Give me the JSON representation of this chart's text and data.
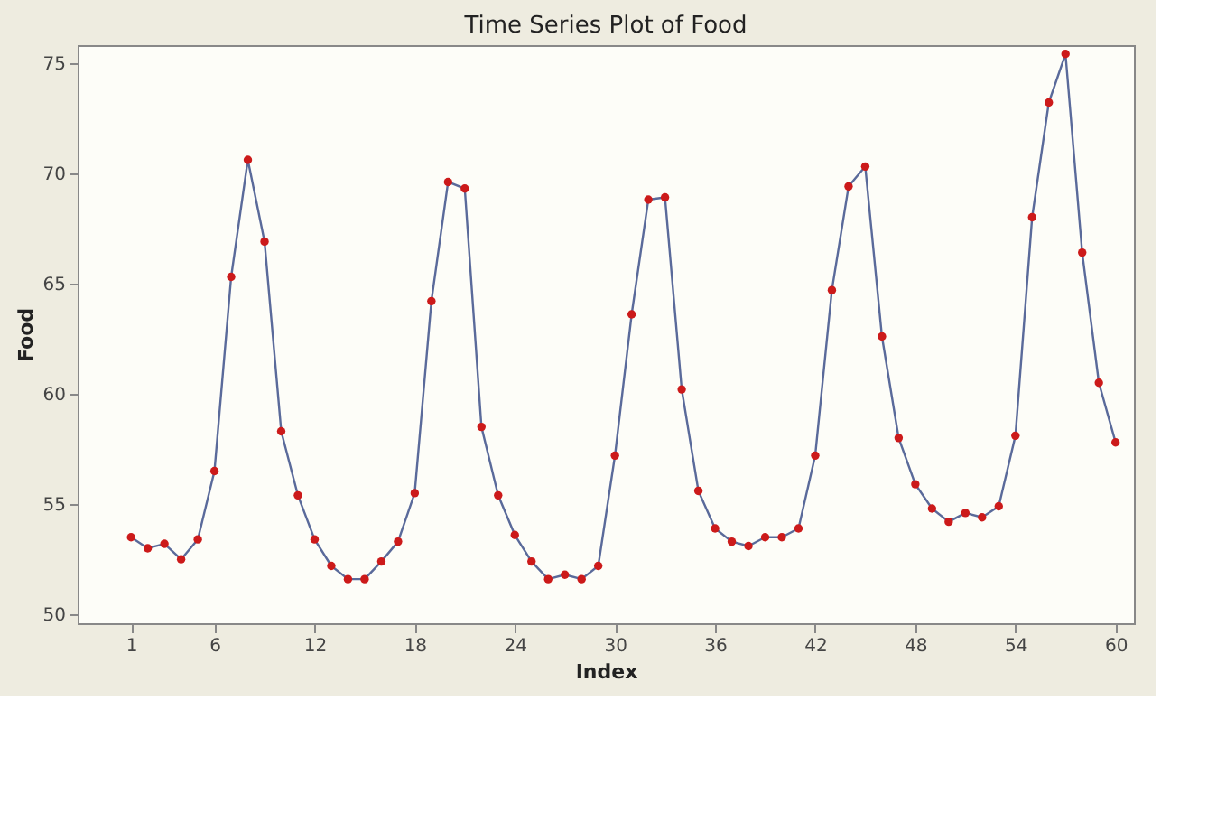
{
  "chart_data": {
    "type": "line",
    "title": "Time Series Plot of Food",
    "xlabel": "Index",
    "ylabel": "Food",
    "x": [
      1,
      2,
      3,
      4,
      5,
      6,
      7,
      8,
      9,
      10,
      11,
      12,
      13,
      14,
      15,
      16,
      17,
      18,
      19,
      20,
      21,
      22,
      23,
      24,
      25,
      26,
      27,
      28,
      29,
      30,
      31,
      32,
      33,
      34,
      35,
      36,
      37,
      38,
      39,
      40,
      41,
      42,
      43,
      44,
      45,
      46,
      47,
      48,
      49,
      50,
      51,
      52,
      53,
      54,
      55,
      56,
      57,
      58,
      59,
      60
    ],
    "series": [
      {
        "color": "#cc1a1a",
        "values": [
          53.5,
          53.0,
          53.2,
          52.5,
          53.4,
          56.5,
          65.3,
          70.6,
          66.9,
          58.3,
          55.4,
          53.4,
          52.2,
          51.6,
          51.6,
          52.4,
          53.3,
          55.5,
          64.2,
          69.6,
          69.3,
          58.5,
          55.4,
          53.6,
          52.4,
          51.6,
          51.8,
          51.6,
          52.2,
          57.2,
          63.6,
          68.8,
          68.9,
          60.2,
          55.6,
          53.9,
          53.3,
          53.1,
          53.5,
          53.5,
          53.9,
          57.2,
          64.7,
          69.4,
          70.3,
          62.6,
          58.0,
          55.9,
          54.8,
          54.2,
          54.6,
          54.4,
          54.9,
          58.1,
          68.0,
          73.2,
          75.4,
          66.4,
          60.5,
          57.8
        ]
      }
    ],
    "xlim": [
      -2.2,
      61.1
    ],
    "ylim": [
      49.6,
      75.8
    ],
    "xticks": [
      1,
      6,
      12,
      18,
      24,
      30,
      36,
      42,
      48,
      54,
      60
    ],
    "yticks": [
      50,
      55,
      60,
      65,
      70,
      75
    ],
    "marker": "circle",
    "line_style": "solid",
    "grid": false
  }
}
